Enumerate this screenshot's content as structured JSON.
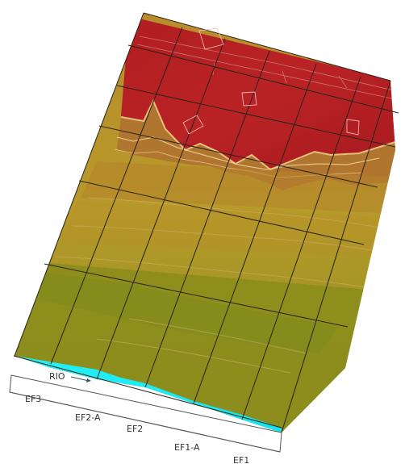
{
  "labels": {
    "ef3": "EF3",
    "ef2a": "EF2-A",
    "ef2": "EF2",
    "ef1a": "EF1-A",
    "ef1": "EF1",
    "rio": "RIO"
  },
  "colors": {
    "red": "#b61f21",
    "brown": "#a86f2d",
    "tan": "#b88f2b",
    "olive": "#8d8e1f",
    "cyan": "#1ee9f4",
    "line": "#2f2314"
  }
}
